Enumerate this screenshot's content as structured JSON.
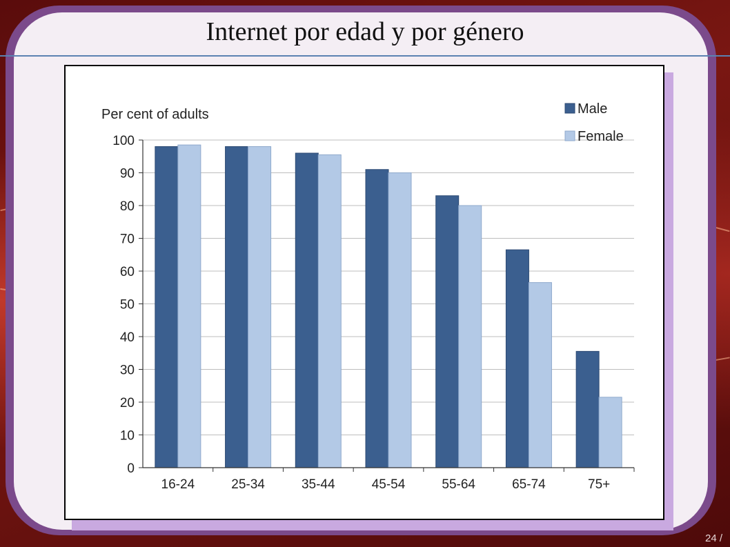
{
  "slide": {
    "title": "Internet por edad y por género",
    "page_number": "24 /"
  },
  "colors": {
    "male": "#3b5f8f",
    "female": "#b3c9e6",
    "frame": "#7b4a8b",
    "title_rule": "#5b82b1"
  },
  "chart_data": {
    "type": "bar",
    "title": "",
    "ylabel": "Per cent of adults",
    "xlabel": "",
    "categories": [
      "16-24",
      "25-34",
      "35-44",
      "45-54",
      "55-64",
      "65-74",
      "75+"
    ],
    "series": [
      {
        "name": "Male",
        "values": [
          98,
          98,
          96,
          91,
          83,
          66.5,
          35.5
        ]
      },
      {
        "name": "Female",
        "values": [
          98.5,
          98,
          95.5,
          90,
          80,
          56.5,
          21.5
        ]
      }
    ],
    "ylim": [
      0,
      100
    ],
    "yticks": [
      0,
      10,
      20,
      30,
      40,
      50,
      60,
      70,
      80,
      90,
      100
    ],
    "grid": true,
    "legend_position": "top-right"
  }
}
